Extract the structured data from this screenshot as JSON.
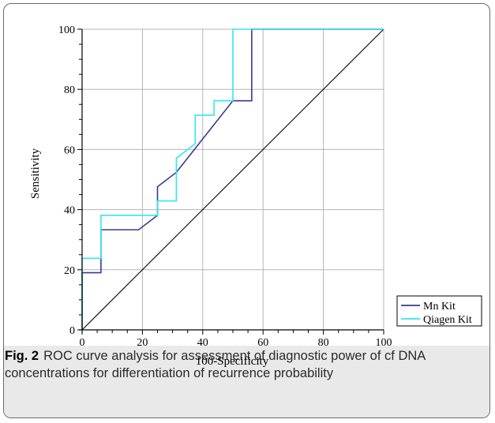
{
  "chart_data": {
    "type": "line",
    "xlabel": "100-Specificity",
    "ylabel": "Sensitivity",
    "xlim": [
      0,
      100
    ],
    "ylim": [
      0,
      100
    ],
    "x_ticks": [
      "0",
      "20",
      "40",
      "60",
      "80",
      "100"
    ],
    "y_ticks": [
      "0",
      "20",
      "40",
      "60",
      "80",
      "100"
    ],
    "grid": true,
    "legend_position": "bottom-right",
    "series": [
      {
        "name": "Mn Kit",
        "color": "#3a3a8c",
        "x": [
          0,
          0,
          6.25,
          6.25,
          18.75,
          25,
          25,
          31.25,
          50,
          56.25,
          56.25,
          100
        ],
        "y": [
          0,
          19,
          19,
          33.3,
          33.3,
          38.1,
          47.6,
          52.4,
          76.2,
          76.2,
          100,
          100
        ]
      },
      {
        "name": "Qiagen Kit",
        "color": "#33e6f0",
        "x": [
          0,
          0,
          6.25,
          6.25,
          25,
          25,
          31.25,
          31.25,
          37.5,
          37.5,
          43.75,
          43.75,
          50,
          50,
          100
        ],
        "y": [
          0,
          23.8,
          23.8,
          38.1,
          38.1,
          42.9,
          42.9,
          57.1,
          61.9,
          71.4,
          71.4,
          76.2,
          76.2,
          100,
          100
        ]
      },
      {
        "name": "",
        "color": "#000000",
        "x": [
          0,
          100
        ],
        "y": [
          0,
          100
        ]
      }
    ]
  },
  "caption": {
    "label": "Fig. 2",
    "text": "ROC curve analysis for assessment of diagnostic power of cf DNA concentrations for differentiation of recurrence probability"
  }
}
